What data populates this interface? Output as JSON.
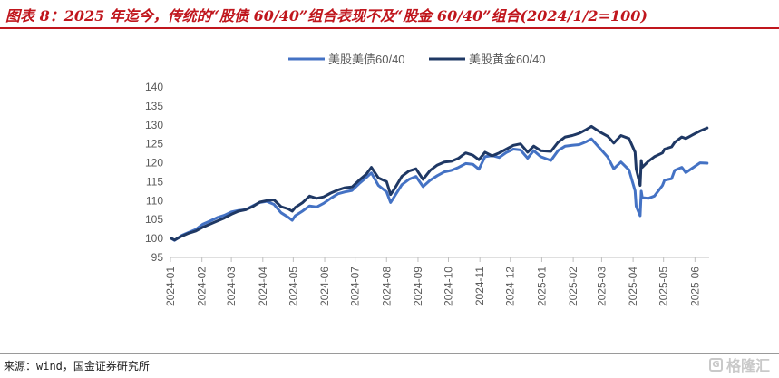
{
  "title": "图表 8：2025 年迄今，传统的“股债 60/40”组合表现不及“股金 60/40”组合(2024/1/2=100)",
  "source": "来源：wind，国金证券研究所",
  "watermark": "格隆汇",
  "colors": {
    "title": "#c0161d",
    "series_stock_bond": "#4472c4",
    "series_stock_gold": "#1f3864",
    "axis": "#bfbfbf",
    "tick_text": "#595959"
  },
  "chart_data": {
    "type": "line",
    "title": "",
    "xlabel": "",
    "ylabel": "",
    "ylim": [
      95,
      140
    ],
    "yticks": [
      95,
      100,
      105,
      110,
      115,
      120,
      125,
      130,
      135,
      140
    ],
    "xlim": [
      "2024-01-01",
      "2025-06-15"
    ],
    "xtick_labels": [
      "2024-01",
      "2024-02",
      "2024-03",
      "2024-04",
      "2024-05",
      "2024-06",
      "2024-07",
      "2024-08",
      "2024-09",
      "2024-10",
      "2024-11",
      "2024-12",
      "2025-01",
      "2025-02",
      "2025-03",
      "2025-04",
      "2025-05",
      "2025-06"
    ],
    "grid": false,
    "legend": "top-center",
    "series": [
      {
        "name": "美股美债60/40",
        "color": "#4472c4",
        "points": [
          [
            "2024-01-02",
            100
          ],
          [
            "2024-01-05",
            99.5
          ],
          [
            "2024-01-12",
            100.8
          ],
          [
            "2024-01-19",
            101.6
          ],
          [
            "2024-01-26",
            102.4
          ],
          [
            "2024-02-02",
            103.8
          ],
          [
            "2024-02-09",
            104.6
          ],
          [
            "2024-02-16",
            105.5
          ],
          [
            "2024-02-23",
            106.1
          ],
          [
            "2024-03-01",
            107.0
          ],
          [
            "2024-03-08",
            107.4
          ],
          [
            "2024-03-15",
            107.6
          ],
          [
            "2024-03-22",
            108.6
          ],
          [
            "2024-03-29",
            109.5
          ],
          [
            "2024-04-05",
            109.8
          ],
          [
            "2024-04-12",
            109.0
          ],
          [
            "2024-04-19",
            106.8
          ],
          [
            "2024-04-26",
            105.6
          ],
          [
            "2024-04-30",
            104.8
          ],
          [
            "2024-05-03",
            106.0
          ],
          [
            "2024-05-10",
            107.2
          ],
          [
            "2024-05-17",
            108.6
          ],
          [
            "2024-05-24",
            108.3
          ],
          [
            "2024-05-31",
            109.3
          ],
          [
            "2024-06-07",
            110.6
          ],
          [
            "2024-06-14",
            111.8
          ],
          [
            "2024-06-21",
            112.3
          ],
          [
            "2024-06-28",
            112.7
          ],
          [
            "2024-07-05",
            114.5
          ],
          [
            "2024-07-12",
            116.1
          ],
          [
            "2024-07-17",
            117.3
          ],
          [
            "2024-07-24",
            114.0
          ],
          [
            "2024-08-01",
            112.3
          ],
          [
            "2024-08-05",
            109.5
          ],
          [
            "2024-08-09",
            111.2
          ],
          [
            "2024-08-16",
            114.2
          ],
          [
            "2024-08-23",
            115.6
          ],
          [
            "2024-08-30",
            116.4
          ],
          [
            "2024-09-06",
            113.7
          ],
          [
            "2024-09-13",
            115.4
          ],
          [
            "2024-09-20",
            116.6
          ],
          [
            "2024-09-27",
            117.6
          ],
          [
            "2024-10-04",
            118.0
          ],
          [
            "2024-10-11",
            118.8
          ],
          [
            "2024-10-18",
            119.8
          ],
          [
            "2024-10-25",
            119.6
          ],
          [
            "2024-10-31",
            118.3
          ],
          [
            "2024-11-06",
            121.6
          ],
          [
            "2024-11-13",
            121.9
          ],
          [
            "2024-11-20",
            121.4
          ],
          [
            "2024-11-27",
            122.7
          ],
          [
            "2024-12-04",
            123.6
          ],
          [
            "2024-12-11",
            123.4
          ],
          [
            "2024-12-18",
            121.2
          ],
          [
            "2024-12-24",
            123.2
          ],
          [
            "2024-12-31",
            121.6
          ],
          [
            "2025-01-10",
            120.6
          ],
          [
            "2025-01-17",
            123.2
          ],
          [
            "2025-01-24",
            124.4
          ],
          [
            "2025-01-31",
            124.6
          ],
          [
            "2025-02-07",
            124.8
          ],
          [
            "2025-02-14",
            125.6
          ],
          [
            "2025-02-19",
            126.3
          ],
          [
            "2025-02-28",
            123.6
          ],
          [
            "2025-03-07",
            121.5
          ],
          [
            "2025-03-13",
            118.4
          ],
          [
            "2025-03-20",
            120.2
          ],
          [
            "2025-03-28",
            118.1
          ],
          [
            "2025-04-03",
            112.6
          ],
          [
            "2025-04-04",
            108.5
          ],
          [
            "2025-04-08",
            106.0
          ],
          [
            "2025-04-09",
            112.5
          ],
          [
            "2025-04-10",
            110.8
          ],
          [
            "2025-04-16",
            110.6
          ],
          [
            "2025-04-22",
            111.2
          ],
          [
            "2025-04-30",
            114.0
          ],
          [
            "2025-05-02",
            115.4
          ],
          [
            "2025-05-09",
            115.8
          ],
          [
            "2025-05-12",
            118.0
          ],
          [
            "2025-05-19",
            118.8
          ],
          [
            "2025-05-23",
            117.4
          ],
          [
            "2025-05-30",
            118.7
          ],
          [
            "2025-06-06",
            120.0
          ],
          [
            "2025-06-13",
            119.9
          ]
        ]
      },
      {
        "name": "美股黄金60/40",
        "color": "#1f3864",
        "points": [
          [
            "2024-01-02",
            100
          ],
          [
            "2024-01-05",
            99.6
          ],
          [
            "2024-01-12",
            100.6
          ],
          [
            "2024-01-19",
            101.4
          ],
          [
            "2024-01-26",
            102.0
          ],
          [
            "2024-02-02",
            103.0
          ],
          [
            "2024-02-09",
            103.8
          ],
          [
            "2024-02-16",
            104.6
          ],
          [
            "2024-02-23",
            105.4
          ],
          [
            "2024-03-01",
            106.4
          ],
          [
            "2024-03-08",
            107.2
          ],
          [
            "2024-03-15",
            107.6
          ],
          [
            "2024-03-22",
            108.4
          ],
          [
            "2024-03-29",
            109.6
          ],
          [
            "2024-04-05",
            110.0
          ],
          [
            "2024-04-12",
            110.2
          ],
          [
            "2024-04-19",
            108.4
          ],
          [
            "2024-04-26",
            107.8
          ],
          [
            "2024-04-30",
            107.2
          ],
          [
            "2024-05-03",
            108.2
          ],
          [
            "2024-05-10",
            109.4
          ],
          [
            "2024-05-17",
            111.2
          ],
          [
            "2024-05-24",
            110.6
          ],
          [
            "2024-05-31",
            111.0
          ],
          [
            "2024-06-07",
            112.0
          ],
          [
            "2024-06-14",
            112.8
          ],
          [
            "2024-06-21",
            113.4
          ],
          [
            "2024-06-28",
            113.6
          ],
          [
            "2024-07-05",
            115.4
          ],
          [
            "2024-07-12",
            117.0
          ],
          [
            "2024-07-17",
            118.8
          ],
          [
            "2024-07-24",
            116.0
          ],
          [
            "2024-08-01",
            115.0
          ],
          [
            "2024-08-05",
            111.6
          ],
          [
            "2024-08-09",
            113.2
          ],
          [
            "2024-08-16",
            116.4
          ],
          [
            "2024-08-23",
            117.8
          ],
          [
            "2024-08-30",
            118.4
          ],
          [
            "2024-09-06",
            115.6
          ],
          [
            "2024-09-13",
            118.0
          ],
          [
            "2024-09-20",
            119.4
          ],
          [
            "2024-09-27",
            120.2
          ],
          [
            "2024-10-04",
            120.4
          ],
          [
            "2024-10-11",
            121.2
          ],
          [
            "2024-10-18",
            122.6
          ],
          [
            "2024-10-25",
            122.0
          ],
          [
            "2024-10-31",
            120.8
          ],
          [
            "2024-11-06",
            122.8
          ],
          [
            "2024-11-13",
            121.8
          ],
          [
            "2024-11-20",
            122.6
          ],
          [
            "2024-11-27",
            123.6
          ],
          [
            "2024-12-04",
            124.6
          ],
          [
            "2024-12-11",
            125.0
          ],
          [
            "2024-12-18",
            122.8
          ],
          [
            "2024-12-24",
            124.4
          ],
          [
            "2024-12-31",
            123.2
          ],
          [
            "2025-01-10",
            123.0
          ],
          [
            "2025-01-17",
            125.4
          ],
          [
            "2025-01-24",
            126.8
          ],
          [
            "2025-01-31",
            127.2
          ],
          [
            "2025-02-07",
            127.8
          ],
          [
            "2025-02-14",
            128.8
          ],
          [
            "2025-02-19",
            129.6
          ],
          [
            "2025-02-28",
            128.0
          ],
          [
            "2025-03-07",
            127.0
          ],
          [
            "2025-03-13",
            125.2
          ],
          [
            "2025-03-20",
            127.2
          ],
          [
            "2025-03-28",
            126.4
          ],
          [
            "2025-04-03",
            122.8
          ],
          [
            "2025-04-04",
            118.4
          ],
          [
            "2025-04-08",
            114.0
          ],
          [
            "2025-04-09",
            120.6
          ],
          [
            "2025-04-10",
            118.8
          ],
          [
            "2025-04-16",
            120.4
          ],
          [
            "2025-04-22",
            121.6
          ],
          [
            "2025-04-30",
            122.6
          ],
          [
            "2025-05-02",
            123.6
          ],
          [
            "2025-05-09",
            124.2
          ],
          [
            "2025-05-12",
            125.4
          ],
          [
            "2025-05-19",
            126.8
          ],
          [
            "2025-05-23",
            126.4
          ],
          [
            "2025-05-30",
            127.4
          ],
          [
            "2025-06-06",
            128.4
          ],
          [
            "2025-06-13",
            129.2
          ]
        ]
      }
    ]
  }
}
